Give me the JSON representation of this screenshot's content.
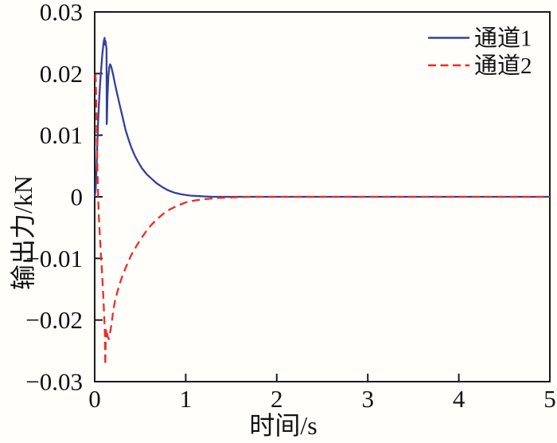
{
  "figure": {
    "background_color": "#fffefb",
    "frame_color": "#1a1a1a"
  },
  "chart_data": {
    "type": "line",
    "xlabel": "时间/s",
    "ylabel": "输出力/kN",
    "xlim": [
      0,
      5
    ],
    "ylim": [
      -0.03,
      0.03
    ],
    "grid": false,
    "legend": {
      "position": "top-right",
      "frame": false
    },
    "x_ticks": [
      {
        "value": 0,
        "label": "0"
      },
      {
        "value": 1,
        "label": "1"
      },
      {
        "value": 2,
        "label": "2"
      },
      {
        "value": 3,
        "label": "3"
      },
      {
        "value": 4,
        "label": "4"
      },
      {
        "value": 5,
        "label": "5"
      }
    ],
    "y_ticks": [
      {
        "value": 0.03,
        "label": "0.03"
      },
      {
        "value": 0.02,
        "label": "0.02"
      },
      {
        "value": 0.01,
        "label": "0.01"
      },
      {
        "value": 0,
        "label": "0"
      },
      {
        "value": -0.01,
        "label": "−0.01"
      },
      {
        "value": -0.02,
        "label": "−0.02"
      },
      {
        "value": -0.03,
        "label": "−0.03"
      }
    ],
    "series": [
      {
        "name": "通道1",
        "color": "#3340a0",
        "style": "solid",
        "points": [
          [
            0,
            0
          ],
          [
            0.01,
            0.001
          ],
          [
            0.02,
            0.0045
          ],
          [
            0.03,
            0.009
          ],
          [
            0.04,
            0.013
          ],
          [
            0.05,
            0.016
          ],
          [
            0.06,
            0.0185
          ],
          [
            0.07,
            0.0205
          ],
          [
            0.08,
            0.0225
          ],
          [
            0.09,
            0.024
          ],
          [
            0.1,
            0.0252
          ],
          [
            0.108,
            0.0258
          ],
          [
            0.113,
            0.0247
          ],
          [
            0.118,
            0.0253
          ],
          [
            0.124,
            0.0246
          ],
          [
            0.13,
            0.024
          ],
          [
            0.132,
            0.0118
          ],
          [
            0.135,
            0.0125
          ],
          [
            0.14,
            0.016
          ],
          [
            0.15,
            0.0196
          ],
          [
            0.16,
            0.021
          ],
          [
            0.17,
            0.0215
          ],
          [
            0.18,
            0.0212
          ],
          [
            0.2,
            0.02
          ],
          [
            0.22,
            0.0185
          ],
          [
            0.25,
            0.0165
          ],
          [
            0.28,
            0.0146
          ],
          [
            0.31,
            0.0127
          ],
          [
            0.34,
            0.0108
          ],
          [
            0.37,
            0.0094
          ],
          [
            0.4,
            0.0081
          ],
          [
            0.44,
            0.0067
          ],
          [
            0.48,
            0.0056
          ],
          [
            0.52,
            0.0046
          ],
          [
            0.57,
            0.0037
          ],
          [
            0.62,
            0.003
          ],
          [
            0.68,
            0.0022
          ],
          [
            0.74,
            0.0016
          ],
          [
            0.8,
            0.0011
          ],
          [
            0.87,
            0.0007
          ],
          [
            0.95,
            0.0004
          ],
          [
            1.05,
            0.0002
          ],
          [
            1.15,
            0.0001
          ],
          [
            1.3,
            0
          ],
          [
            1.5,
            0
          ],
          [
            2,
            0
          ],
          [
            2.5,
            0
          ],
          [
            3,
            0
          ],
          [
            3.5,
            0
          ],
          [
            4,
            0
          ],
          [
            4.5,
            0
          ],
          [
            5,
            0
          ]
        ]
      },
      {
        "name": "通道2",
        "color": "#ee2c22",
        "style": "dashed",
        "points": [
          [
            0.008,
            0.0199
          ],
          [
            0.012,
            0.0185
          ],
          [
            0.018,
            0.0145
          ],
          [
            0.024,
            0.0095
          ],
          [
            0.03,
            0.0048
          ],
          [
            0.036,
            0.0012
          ],
          [
            0.042,
            -0.0018
          ],
          [
            0.05,
            -0.0045
          ],
          [
            0.06,
            -0.0072
          ],
          [
            0.07,
            -0.0098
          ],
          [
            0.08,
            -0.0122
          ],
          [
            0.09,
            -0.0148
          ],
          [
            0.098,
            -0.0172
          ],
          [
            0.104,
            -0.0192
          ],
          [
            0.109,
            -0.0212
          ],
          [
            0.113,
            -0.0228
          ],
          [
            0.116,
            -0.0273
          ],
          [
            0.12,
            -0.0243
          ],
          [
            0.126,
            -0.0214
          ],
          [
            0.133,
            -0.022
          ],
          [
            0.142,
            -0.0226
          ],
          [
            0.155,
            -0.0231
          ],
          [
            0.168,
            -0.0222
          ],
          [
            0.185,
            -0.0206
          ],
          [
            0.205,
            -0.0183
          ],
          [
            0.225,
            -0.0168
          ],
          [
            0.25,
            -0.0154
          ],
          [
            0.28,
            -0.0139
          ],
          [
            0.31,
            -0.0126
          ],
          [
            0.35,
            -0.0112
          ],
          [
            0.4,
            -0.0095
          ],
          [
            0.45,
            -0.0082
          ],
          [
            0.5,
            -0.007
          ],
          [
            0.56,
            -0.0057
          ],
          [
            0.62,
            -0.0046
          ],
          [
            0.68,
            -0.0037
          ],
          [
            0.75,
            -0.0028
          ],
          [
            0.82,
            -0.0021
          ],
          [
            0.9,
            -0.0015
          ],
          [
            1.0,
            -0.0009
          ],
          [
            1.1,
            -0.0006
          ],
          [
            1.2,
            -0.0004
          ],
          [
            1.35,
            -0.0002
          ],
          [
            1.5,
            -0.0001
          ],
          [
            1.7,
            0
          ],
          [
            2,
            0
          ],
          [
            2.5,
            0
          ],
          [
            3,
            0
          ],
          [
            3.5,
            0
          ],
          [
            4,
            0
          ],
          [
            4.5,
            0
          ],
          [
            5,
            0
          ]
        ]
      }
    ]
  }
}
